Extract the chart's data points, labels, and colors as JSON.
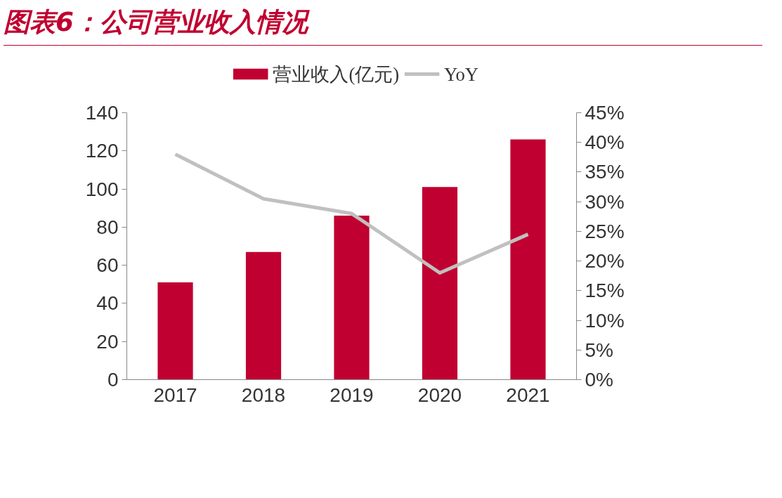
{
  "chart_data": {
    "type": "bar",
    "title": "图表6：公司营业收入情况",
    "categories": [
      "2017",
      "2018",
      "2019",
      "2020",
      "2021"
    ],
    "series": [
      {
        "name": "营业收入(亿元)",
        "color": "#c00030",
        "values": [
          51,
          67,
          86,
          101,
          126
        ]
      },
      {
        "name": "YoY",
        "type": "line",
        "axis": "y2",
        "color": "#c0c0c0",
        "values": [
          38,
          30.5,
          28,
          18,
          24.5
        ]
      }
    ],
    "ylim": [
      0,
      140
    ],
    "yticks": [
      0,
      20,
      40,
      60,
      80,
      100,
      120,
      140
    ],
    "y2lim": [
      0,
      45
    ],
    "y2ticks": [
      {
        "value": 0,
        "label": "0%"
      },
      {
        "value": 5,
        "label": "5%"
      },
      {
        "value": 10,
        "label": "10%"
      },
      {
        "value": 15,
        "label": "15%"
      },
      {
        "value": 20,
        "label": "20%"
      },
      {
        "value": 25,
        "label": "25%"
      },
      {
        "value": 30,
        "label": "30%"
      },
      {
        "value": 35,
        "label": "35%"
      },
      {
        "value": 40,
        "label": "40%"
      },
      {
        "value": 45,
        "label": "45%"
      }
    ],
    "legend": "top",
    "grid": false,
    "marker": "none"
  }
}
